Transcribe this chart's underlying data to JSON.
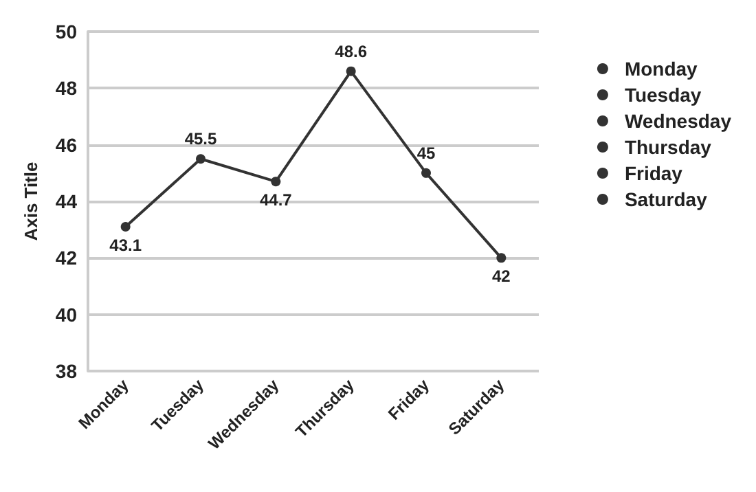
{
  "chart_data": {
    "type": "line",
    "ylabel": "Axis Title",
    "categories": [
      "Monday",
      "Tuesday",
      "Wednesday",
      "Thursday",
      "Friday",
      "Saturday"
    ],
    "series": [
      {
        "color": "#333333",
        "marker": "none",
        "values": [
          43.1,
          45.5,
          44.7,
          48.6,
          45,
          42
        ]
      },
      {
        "name": "Monday",
        "type": "scatter",
        "color": "#333333",
        "values": [
          43.1,
          null,
          null,
          null,
          null,
          null
        ],
        "value_labels": [
          "43.1",
          null,
          null,
          null,
          null,
          null
        ]
      },
      {
        "name": "Tuesday",
        "type": "scatter",
        "color": "#333333",
        "values": [
          null,
          45.5,
          null,
          null,
          null,
          null
        ],
        "value_labels": [
          null,
          "45.5",
          null,
          null,
          null,
          null
        ]
      },
      {
        "name": "Wednesday",
        "type": "scatter",
        "color": "#333333",
        "values": [
          null,
          null,
          44.7,
          null,
          null,
          null
        ],
        "value_labels": [
          null,
          null,
          "44.7",
          null,
          null,
          null
        ]
      },
      {
        "name": "Thursday",
        "type": "scatter",
        "color": "#333333",
        "values": [
          null,
          null,
          null,
          48.6,
          null,
          null
        ],
        "value_labels": [
          null,
          null,
          null,
          "48.6",
          null,
          null
        ]
      },
      {
        "name": "Friday",
        "type": "scatter",
        "color": "#333333",
        "values": [
          null,
          null,
          null,
          null,
          45,
          null
        ],
        "value_labels": [
          null,
          null,
          null,
          null,
          "45",
          null
        ]
      },
      {
        "name": "Saturday",
        "type": "scatter",
        "color": "#333333",
        "values": [
          null,
          null,
          null,
          null,
          null,
          42
        ],
        "value_labels": [
          null,
          null,
          null,
          null,
          null,
          "42"
        ]
      }
    ],
    "ylim": [
      38,
      50
    ],
    "yticks": [
      38,
      40,
      42,
      44,
      46,
      48,
      50
    ],
    "grid": "y",
    "legend": "right",
    "marker": "circle",
    "line_style": "solid"
  }
}
